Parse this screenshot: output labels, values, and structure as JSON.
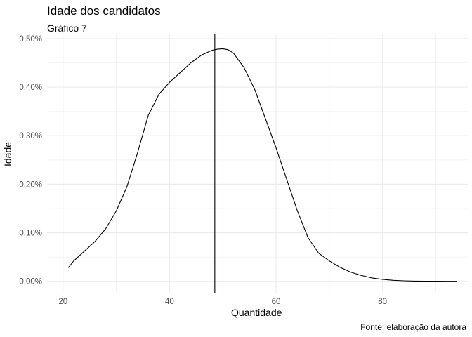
{
  "chart_data": {
    "type": "line",
    "title": "Idade dos candidatos",
    "subtitle": "Gráfico 7",
    "caption": "Fonte: elaboração da autora",
    "xlabel": "Quantidade",
    "ylabel": "Idade",
    "xlim": [
      17,
      96
    ],
    "ylim": [
      -0.00025,
      0.0051
    ],
    "x_ticks": [
      20,
      40,
      60,
      80
    ],
    "x_tick_labels": [
      "20",
      "40",
      "60",
      "80"
    ],
    "y_ticks": [
      0,
      0.001,
      0.002,
      0.003,
      0.004,
      0.005
    ],
    "y_tick_labels": [
      "0.00%",
      "0.10%",
      "0.20%",
      "0.30%",
      "0.40%",
      "0.50%"
    ],
    "grid": true,
    "vline_x": 48.5,
    "series": [
      {
        "x": [
          21,
          22,
          24,
          26,
          28,
          30,
          32,
          34,
          36,
          38,
          40,
          42,
          44,
          46,
          48,
          49,
          50,
          51,
          52,
          54,
          56,
          58,
          60,
          62,
          64,
          66,
          68,
          70,
          72,
          74,
          76,
          78,
          80,
          82,
          84,
          86,
          88,
          90,
          92,
          94
        ],
        "y": [
          0.00028,
          0.00042,
          0.00062,
          0.00082,
          0.00108,
          0.00145,
          0.00195,
          0.00265,
          0.00342,
          0.00385,
          0.0041,
          0.0043,
          0.0045,
          0.00466,
          0.00476,
          0.00478,
          0.00479,
          0.00477,
          0.0047,
          0.0044,
          0.00395,
          0.00335,
          0.00275,
          0.0021,
          0.00145,
          0.0009,
          0.00058,
          0.00042,
          0.00029,
          0.00019,
          0.00012,
          7e-05,
          4e-05,
          2e-05,
          1e-05,
          5e-06,
          2e-06,
          1e-06,
          5e-07,
          2e-07
        ]
      }
    ]
  }
}
